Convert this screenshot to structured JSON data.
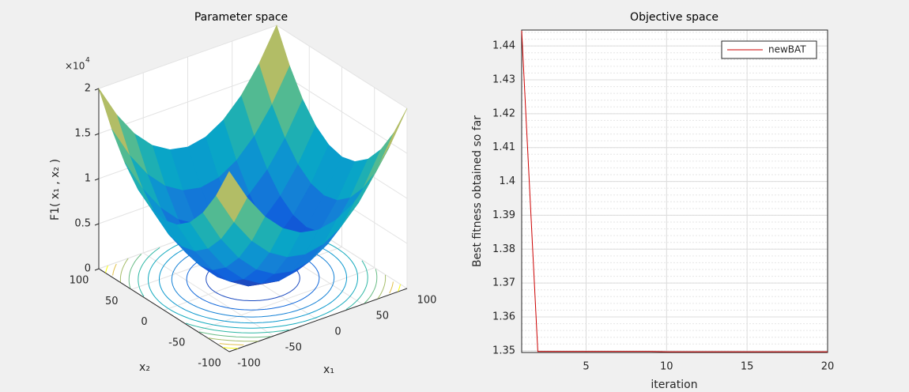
{
  "chart_data": [
    {
      "type": "surface",
      "title": "Parameter space",
      "xlabel": "x₁",
      "ylabel": "x₂",
      "zlabel": "F1( x₁ , x₂ )",
      "z_exponent": {
        "base": "×10",
        "power": "4"
      },
      "x": [
        -100,
        -80,
        -60,
        -40,
        -20,
        0,
        20,
        40,
        60,
        80,
        100
      ],
      "y": [
        -100,
        -80,
        -60,
        -40,
        -20,
        0,
        20,
        40,
        60,
        80,
        100
      ],
      "z": [
        [
          2,
          1.64,
          1.36,
          1.16,
          1.04,
          1,
          1.04,
          1.16,
          1.36,
          1.64,
          2
        ],
        [
          1.64,
          1.28,
          1,
          0.8,
          0.68,
          0.64,
          0.68,
          0.8,
          1,
          1.28,
          1.64
        ],
        [
          1.36,
          1,
          0.72,
          0.52,
          0.4,
          0.36,
          0.4,
          0.52,
          0.72,
          1,
          1.36
        ],
        [
          1.16,
          0.8,
          0.52,
          0.32,
          0.2,
          0.16,
          0.2,
          0.32,
          0.52,
          0.8,
          1.16
        ],
        [
          1.04,
          0.68,
          0.4,
          0.2,
          0.08,
          0.04,
          0.08,
          0.2,
          0.4,
          0.68,
          1.04
        ],
        [
          1,
          0.64,
          0.36,
          0.16,
          0.04,
          0,
          0.04,
          0.16,
          0.36,
          0.64,
          1
        ],
        [
          1.04,
          0.68,
          0.4,
          0.2,
          0.08,
          0.04,
          0.08,
          0.2,
          0.4,
          0.68,
          1.04
        ],
        [
          1.16,
          0.8,
          0.52,
          0.32,
          0.2,
          0.16,
          0.2,
          0.32,
          0.52,
          0.8,
          1.16
        ],
        [
          1.36,
          1,
          0.72,
          0.52,
          0.4,
          0.36,
          0.4,
          0.52,
          0.72,
          1,
          1.36
        ],
        [
          1.64,
          1.28,
          1,
          0.8,
          0.68,
          0.64,
          0.68,
          0.8,
          1,
          1.28,
          1.64
        ],
        [
          2,
          1.64,
          1.36,
          1.16,
          1.04,
          1,
          1.04,
          1.16,
          1.36,
          1.64,
          2
        ]
      ],
      "xlim": [
        -100,
        100
      ],
      "ylim": [
        -100,
        100
      ],
      "zlim": [
        0,
        2
      ],
      "xticks": [
        -100,
        -50,
        0,
        50,
        100
      ],
      "yticks": [
        -100,
        -50,
        0,
        50,
        100
      ],
      "zticks": [
        0,
        0.5,
        1,
        1.5,
        2
      ],
      "grid": true,
      "contour": true
    },
    {
      "type": "line",
      "title": "Objective space",
      "xlabel": "iteration",
      "ylabel": "Best fitness obtained so far",
      "x": [
        1,
        2,
        3,
        4,
        5,
        6,
        7,
        8,
        9,
        10,
        11,
        12,
        13,
        14,
        15,
        16,
        17,
        18,
        19,
        20
      ],
      "series": [
        {
          "name": "newBAT",
          "color": "#cc0000",
          "values": [
            1.4445,
            1.3498,
            1.3498,
            1.3498,
            1.3498,
            1.3498,
            1.3498,
            1.3498,
            1.3498,
            1.3497,
            1.3497,
            1.3497,
            1.3497,
            1.3497,
            1.3497,
            1.3497,
            1.3497,
            1.3497,
            1.3497,
            1.3497
          ]
        }
      ],
      "xlim": [
        1,
        20
      ],
      "ylim": [
        1.3495,
        1.4447
      ],
      "xticks": [
        5,
        10,
        15,
        20
      ],
      "yticks": [
        1.35,
        1.36,
        1.37,
        1.38,
        1.39,
        1.4,
        1.41,
        1.42,
        1.43,
        1.44
      ],
      "grid": true,
      "minor_grid": true,
      "legend": "top-right"
    }
  ]
}
